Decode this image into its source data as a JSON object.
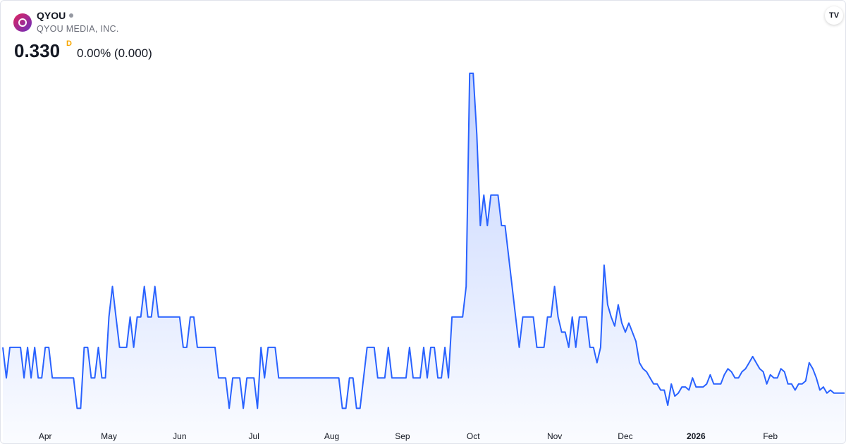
{
  "header": {
    "symbol": "QYOU",
    "company": "QYOU MEDIA, INC.",
    "price": "0.330",
    "resolution": "D",
    "change": "0.00% (0.000)"
  },
  "chart_data": {
    "type": "line",
    "color": "#2962ff",
    "values": [
      0.345,
      0.335,
      0.345,
      0.345,
      0.345,
      0.345,
      0.335,
      0.345,
      0.335,
      0.345,
      0.335,
      0.335,
      0.345,
      0.345,
      0.335,
      0.335,
      0.335,
      0.335,
      0.335,
      0.335,
      0.335,
      0.325,
      0.325,
      0.345,
      0.345,
      0.335,
      0.335,
      0.345,
      0.335,
      0.335,
      0.355,
      0.365,
      0.355,
      0.345,
      0.345,
      0.345,
      0.355,
      0.345,
      0.355,
      0.355,
      0.365,
      0.355,
      0.355,
      0.365,
      0.355,
      0.355,
      0.355,
      0.355,
      0.355,
      0.355,
      0.355,
      0.345,
      0.345,
      0.355,
      0.355,
      0.345,
      0.345,
      0.345,
      0.345,
      0.345,
      0.345,
      0.335,
      0.335,
      0.335,
      0.325,
      0.335,
      0.335,
      0.335,
      0.325,
      0.335,
      0.335,
      0.335,
      0.325,
      0.345,
      0.335,
      0.345,
      0.345,
      0.345,
      0.335,
      0.335,
      0.335,
      0.335,
      0.335,
      0.335,
      0.335,
      0.335,
      0.335,
      0.335,
      0.335,
      0.335,
      0.335,
      0.335,
      0.335,
      0.335,
      0.335,
      0.335,
      0.325,
      0.325,
      0.335,
      0.335,
      0.325,
      0.325,
      0.335,
      0.345,
      0.345,
      0.345,
      0.335,
      0.335,
      0.335,
      0.345,
      0.335,
      0.335,
      0.335,
      0.335,
      0.335,
      0.345,
      0.335,
      0.335,
      0.335,
      0.345,
      0.335,
      0.345,
      0.345,
      0.335,
      0.335,
      0.345,
      0.335,
      0.355,
      0.355,
      0.355,
      0.355,
      0.365,
      0.435,
      0.435,
      0.415,
      0.385,
      0.395,
      0.385,
      0.395,
      0.395,
      0.395,
      0.385,
      0.385,
      0.375,
      0.365,
      0.355,
      0.345,
      0.355,
      0.355,
      0.355,
      0.355,
      0.345,
      0.345,
      0.345,
      0.355,
      0.355,
      0.365,
      0.355,
      0.35,
      0.35,
      0.345,
      0.355,
      0.345,
      0.355,
      0.355,
      0.355,
      0.345,
      0.345,
      0.34,
      0.345,
      0.372,
      0.359,
      0.355,
      0.352,
      0.359,
      0.353,
      0.35,
      0.353,
      0.35,
      0.347,
      0.34,
      0.338,
      0.337,
      0.335,
      0.333,
      0.333,
      0.331,
      0.331,
      0.326,
      0.333,
      0.329,
      0.33,
      0.332,
      0.332,
      0.331,
      0.335,
      0.332,
      0.332,
      0.332,
      0.333,
      0.336,
      0.333,
      0.333,
      0.333,
      0.336,
      0.338,
      0.337,
      0.335,
      0.335,
      0.337,
      0.338,
      0.34,
      0.342,
      0.34,
      0.338,
      0.337,
      0.333,
      0.336,
      0.335,
      0.335,
      0.338,
      0.337,
      0.333,
      0.333,
      0.331,
      0.333,
      0.333,
      0.334,
      0.34,
      0.338,
      0.335,
      0.331,
      0.332,
      0.33,
      0.331,
      0.33,
      0.33,
      0.33,
      0.33
    ],
    "xlim": [
      0,
      237
    ],
    "xticks": [
      {
        "value": 12,
        "label": "Apr"
      },
      {
        "value": 30,
        "label": "May"
      },
      {
        "value": 50,
        "label": "Jun"
      },
      {
        "value": 71,
        "label": "Jul"
      },
      {
        "value": 93,
        "label": "Aug"
      },
      {
        "value": 113,
        "label": "Sep"
      },
      {
        "value": 133,
        "label": "Oct"
      },
      {
        "value": 156,
        "label": "Nov"
      },
      {
        "value": 176,
        "label": "Dec"
      },
      {
        "value": 196,
        "label": "2026"
      },
      {
        "value": 217,
        "label": "Feb"
      }
    ],
    "ylim": [
      0.32,
      0.438
    ]
  }
}
